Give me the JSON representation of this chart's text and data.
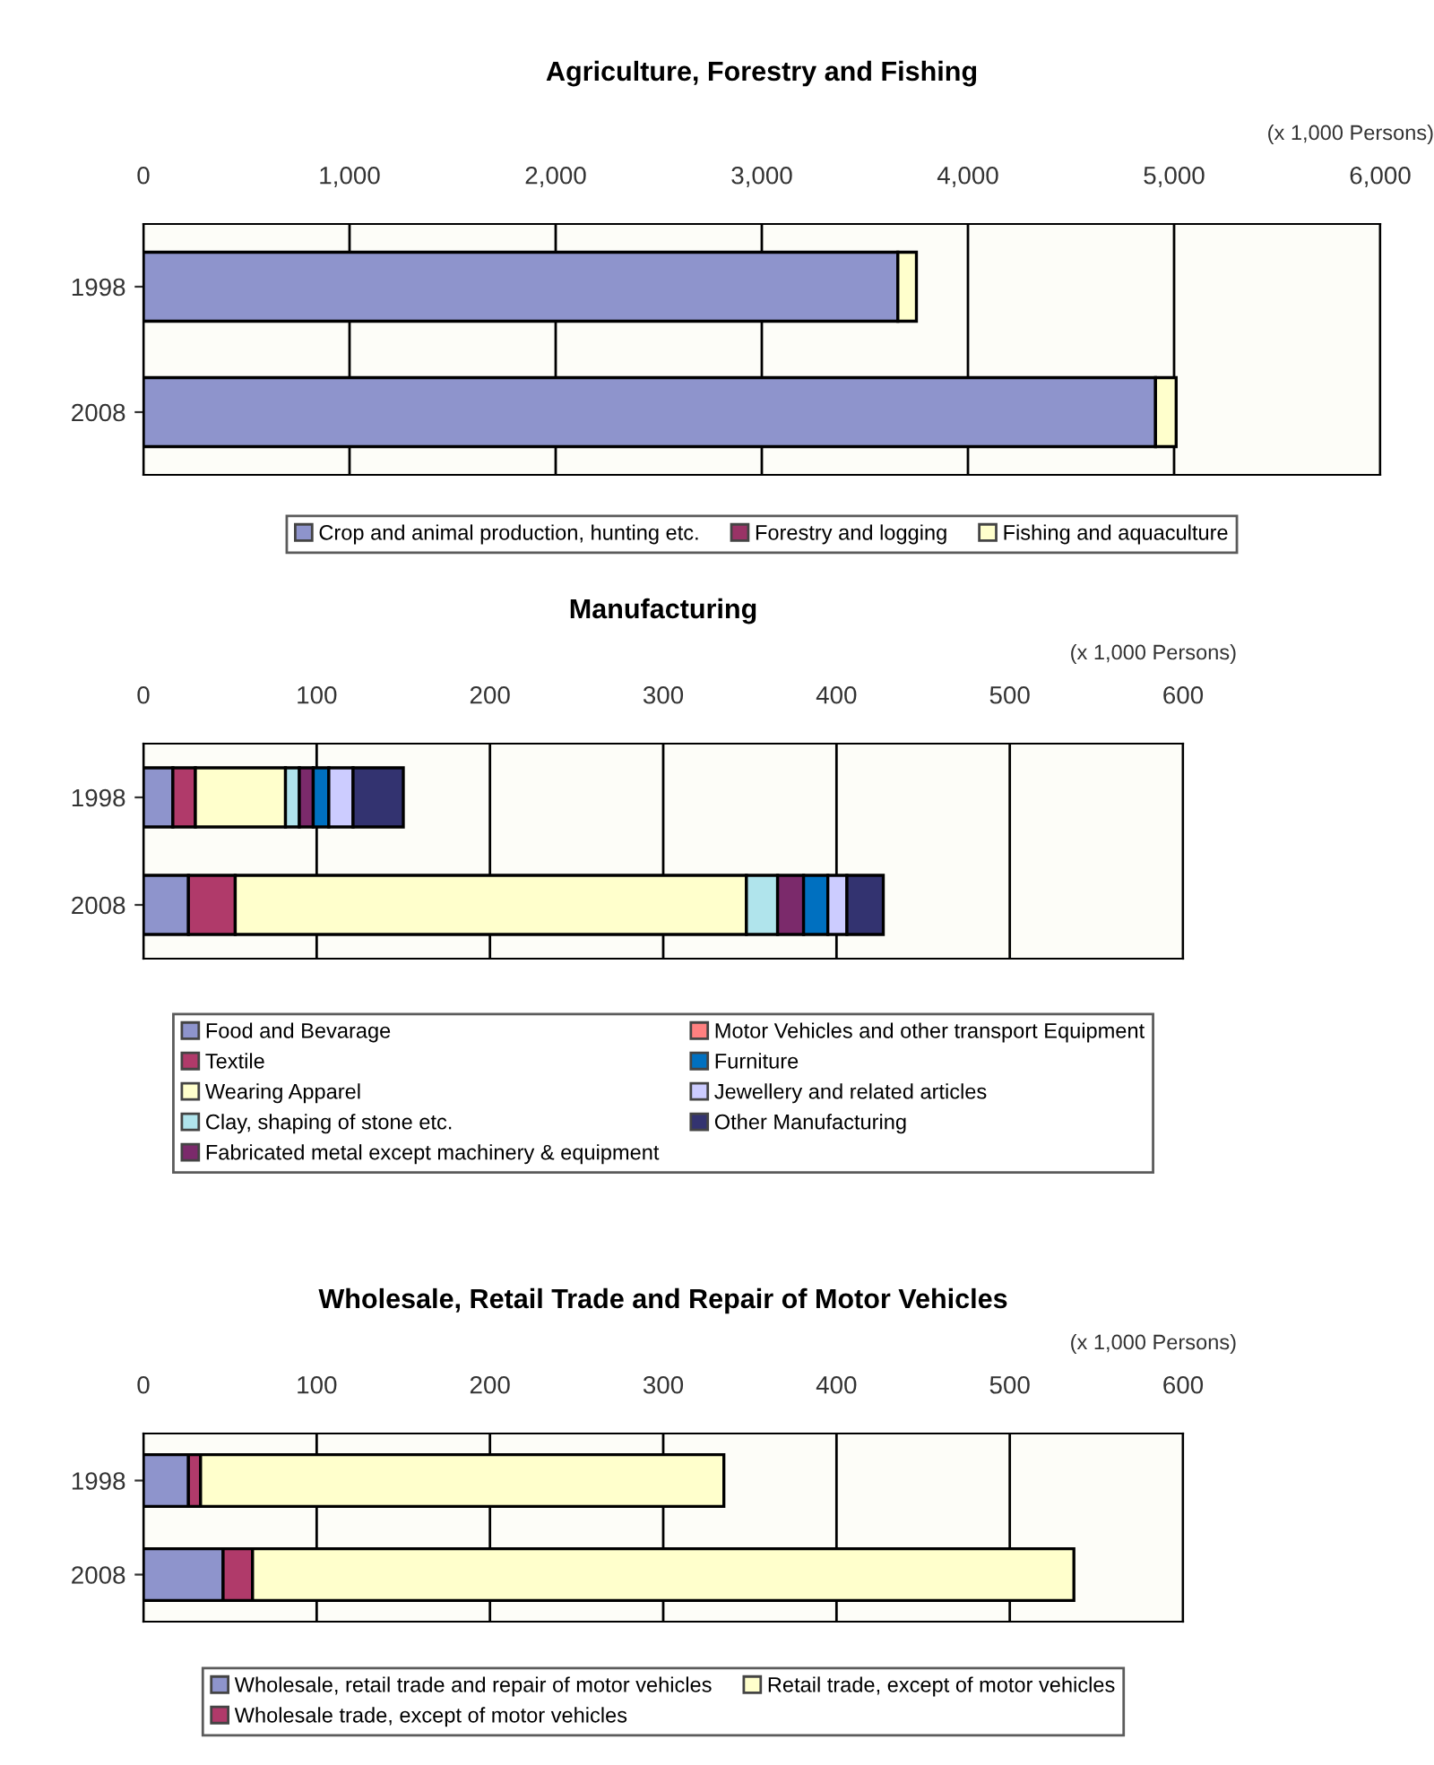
{
  "chart_data": [
    {
      "type": "bar",
      "orientation": "horizontal",
      "stacked": true,
      "title": "Agriculture, Forestry and Fishing",
      "annotations": [
        "(x 1,000 Persons)"
      ],
      "categories": [
        "1998",
        "2008"
      ],
      "xlim": [
        0,
        6000
      ],
      "xticks": [
        {
          "value": 0,
          "label": "0"
        },
        {
          "value": 1000,
          "label": "1,000"
        },
        {
          "value": 2000,
          "label": "2,000"
        },
        {
          "value": 3000,
          "label": "3,000"
        },
        {
          "value": 4000,
          "label": "4,000"
        },
        {
          "value": 5000,
          "label": "5,000"
        },
        {
          "value": 6000,
          "label": "6,000"
        }
      ],
      "grid": "x",
      "legend": "bottom",
      "series": [
        {
          "name": "Crop and animal production, hunting etc.",
          "color": "#8e94cc",
          "values": [
            3660,
            4910
          ]
        },
        {
          "name": "Forestry and logging",
          "color": "#993366",
          "values": [
            null,
            null
          ]
        },
        {
          "name": "Fishing and aquaculture",
          "color": "#ffffcc",
          "values": [
            90,
            100
          ]
        }
      ]
    },
    {
      "type": "bar",
      "orientation": "horizontal",
      "stacked": true,
      "title": "Manufacturing",
      "annotations": [
        "(x 1,000 Persons)"
      ],
      "categories": [
        "1998",
        "2008"
      ],
      "xlim": [
        0,
        600
      ],
      "xticks": [
        0,
        100,
        200,
        300,
        400,
        500,
        600
      ],
      "grid": "x",
      "legend": "bottom",
      "series": [
        {
          "name": "Food and Bevarage",
          "color": "#8e94cc",
          "values": [
            17,
            26
          ]
        },
        {
          "name": "Textile",
          "color": "#b03a6a",
          "values": [
            13,
            27
          ]
        },
        {
          "name": "Wearing Apparel",
          "color": "#ffffcc",
          "values": [
            52,
            295
          ]
        },
        {
          "name": "Clay, shaping of stone etc.",
          "color": "#b0e4ec",
          "values": [
            8,
            18
          ]
        },
        {
          "name": "Fabricated metal except machinery & equipment",
          "color": "#7b2a6b",
          "values": [
            8,
            15
          ]
        },
        {
          "name": "Motor Vehicles and other transport Equipment",
          "color": "#ff8080",
          "values": [
            null,
            null
          ]
        },
        {
          "name": "Furniture",
          "color": "#0070c0",
          "values": [
            9,
            14
          ]
        },
        {
          "name": "Jewellery and related articles",
          "color": "#ccccff",
          "values": [
            14,
            11
          ]
        },
        {
          "name": "Other Manufacturing",
          "color": "#333370",
          "values": [
            29,
            21
          ]
        }
      ]
    },
    {
      "type": "bar",
      "orientation": "horizontal",
      "stacked": true,
      "title": "Wholesale, Retail Trade and Repair of Motor Vehicles",
      "annotations": [
        "(x 1,000 Persons)"
      ],
      "categories": [
        "1998",
        "2008"
      ],
      "xlim": [
        0,
        600
      ],
      "xticks": [
        0,
        100,
        200,
        300,
        400,
        500,
        600
      ],
      "grid": "x",
      "legend": "bottom",
      "series": [
        {
          "name": "Wholesale, retail trade and repair of motor vehicles",
          "color": "#8e94cc",
          "values": [
            26,
            46
          ]
        },
        {
          "name": "Wholesale trade, except of motor vehicles",
          "color": "#b03a6a",
          "values": [
            7,
            17
          ]
        },
        {
          "name": "Retail trade, except of motor vehicles",
          "color": "#ffffcc",
          "values": [
            302,
            474
          ]
        }
      ]
    }
  ]
}
